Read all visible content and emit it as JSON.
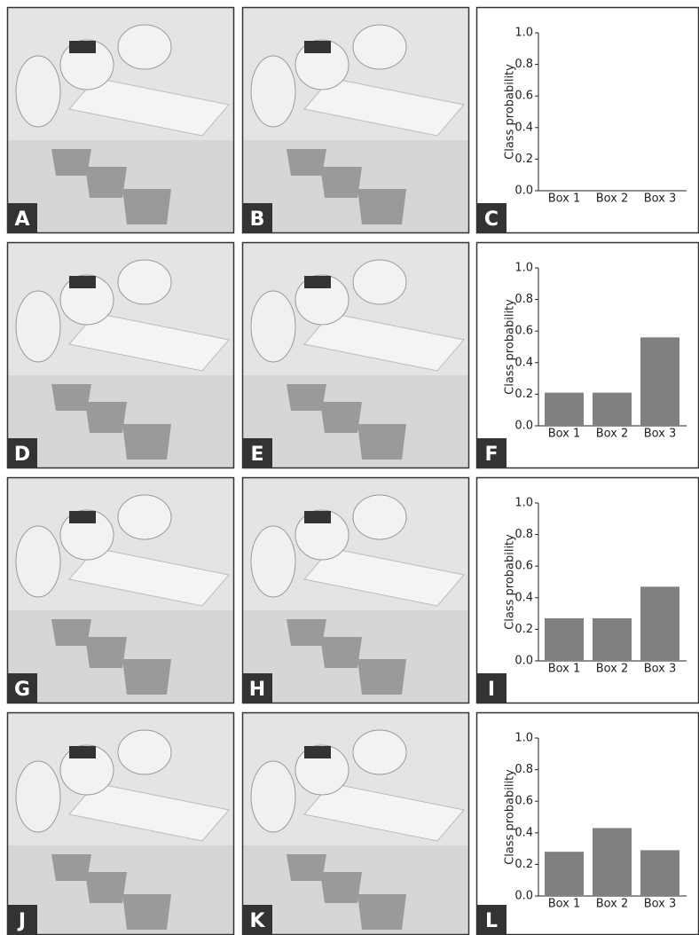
{
  "panel_labels": [
    "A",
    "B",
    "C",
    "D",
    "E",
    "F",
    "G",
    "H",
    "I",
    "J",
    "K",
    "L"
  ],
  "chart_data": [
    {
      "type": "bar",
      "ylabel": "Class probability",
      "categories": [
        "Box 1",
        "Box 2",
        "Box 3"
      ],
      "color": "#808080",
      "ylim": [
        0,
        1
      ],
      "yticks": [
        {
          "value": 0,
          "label": "0.0"
        },
        {
          "value": 0.2,
          "label": "0.2"
        },
        {
          "value": 0.4,
          "label": "0.4"
        },
        {
          "value": 0.6,
          "label": "0.6"
        },
        {
          "value": 0.8,
          "label": "0.8"
        },
        {
          "value": 1,
          "label": "1.0"
        }
      ]
    },
    {
      "type": "bar",
      "ylabel": "Class probability",
      "categories": [
        "Box 1",
        "Box 2",
        "Box 3"
      ],
      "values": [
        0.21,
        0.21,
        0.56
      ],
      "color": "#808080",
      "ylim": [
        0,
        1
      ],
      "yticks": [
        {
          "value": 0,
          "label": "0.0"
        },
        {
          "value": 0.2,
          "label": "0.2"
        },
        {
          "value": 0.4,
          "label": "0.4"
        },
        {
          "value": 0.6,
          "label": "0.6"
        },
        {
          "value": 0.8,
          "label": "0.8"
        },
        {
          "value": 1,
          "label": "1.0"
        }
      ]
    },
    {
      "type": "bar",
      "ylabel": "Class probability",
      "categories": [
        "Box 1",
        "Box 2",
        "Box 3"
      ],
      "values": [
        0.27,
        0.27,
        0.47
      ],
      "color": "#808080",
      "ylim": [
        0,
        1
      ],
      "yticks": [
        {
          "value": 0,
          "label": "0.0"
        },
        {
          "value": 0.2,
          "label": "0.2"
        },
        {
          "value": 0.4,
          "label": "0.4"
        },
        {
          "value": 0.6,
          "label": "0.6"
        },
        {
          "value": 0.8,
          "label": "0.8"
        },
        {
          "value": 1,
          "label": "1.0"
        }
      ]
    },
    {
      "type": "bar",
      "ylabel": "Class probability",
      "categories": [
        "Box 1",
        "Box 2",
        "Box 3"
      ],
      "values": [
        0.28,
        0.43,
        0.29
      ],
      "color": "#808080",
      "ylim": [
        0,
        1
      ],
      "yticks": [
        {
          "value": 0,
          "label": "0.0"
        },
        {
          "value": 0.2,
          "label": "0.2"
        },
        {
          "value": 0.4,
          "label": "0.4"
        },
        {
          "value": 0.6,
          "label": "0.6"
        },
        {
          "value": 0.8,
          "label": "0.8"
        },
        {
          "value": 1,
          "label": "1.0"
        }
      ]
    }
  ]
}
